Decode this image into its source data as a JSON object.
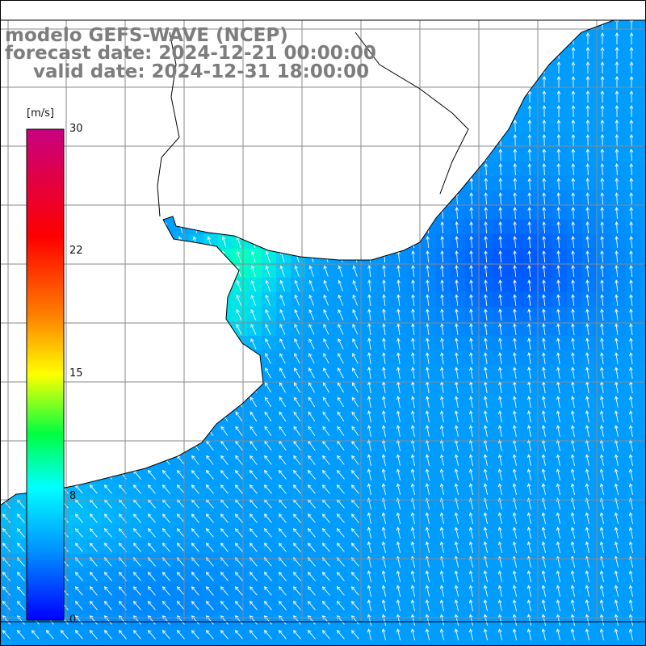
{
  "title": {
    "model": "modelo GEFS-WAVE (NCEP)",
    "forecast": "forecast date: 2024-12-21 00:00:00",
    "valid": "valid date: 2024-12-31 18:00:00"
  },
  "colorbar": {
    "unit": "[m/s]",
    "ticks": [
      "30",
      "22",
      "15",
      "8",
      "0"
    ],
    "tick_values": [
      30,
      22,
      15,
      8,
      0
    ],
    "range": [
      0,
      30
    ],
    "colors": [
      "#0000ff",
      "#00c8ff",
      "#00ffff",
      "#00ff00",
      "#ffff00",
      "#ff8000",
      "#ff0000",
      "#c80080"
    ]
  },
  "map": {
    "colors": {
      "land": "#ffffff",
      "coast": "#000000",
      "grid": "#8a8a8a",
      "arrow": "#ffffff"
    },
    "dominant_wind_direction": "from south to south-east",
    "speed_range_observed": [
      2,
      9
    ]
  }
}
